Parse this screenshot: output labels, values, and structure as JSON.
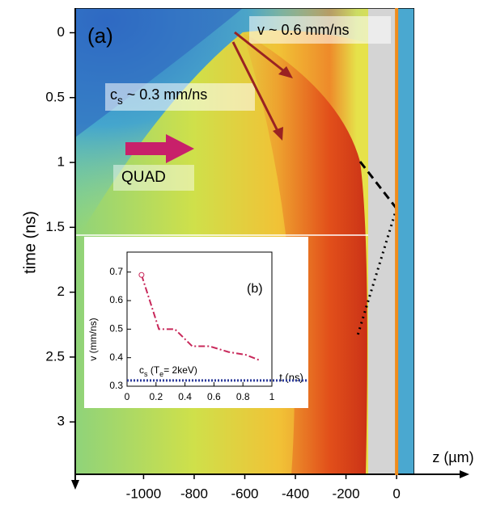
{
  "chart_data": [
    {
      "type": "heatmap",
      "xlabel": "z (µm)",
      "ylabel": "time (ns)",
      "xlim": [
        -1270,
        70
      ],
      "xticks": [
        -1000,
        -800,
        -600,
        -400,
        -200,
        0
      ],
      "ylim": [
        -0.19,
        3.41
      ],
      "yticks": [
        0,
        0.5,
        1,
        1.5,
        2,
        2.5,
        3
      ],
      "annotations": [
        "(a)",
        "v ~ 0.6 mm/ns",
        [
          "c",
          "s",
          " ~ 0.3 mm/ns"
        ],
        "QUAD"
      ]
    },
    {
      "type": "line",
      "xlabel": "t (ns)",
      "ylabel": "v (mm/ns)",
      "xlim": [
        0,
        1
      ],
      "xticks": [
        0,
        0.2,
        0.4,
        0.6,
        0.8,
        1
      ],
      "ylim": [
        0.3,
        0.77
      ],
      "yticks": [
        0.3,
        0.4,
        0.5,
        0.6,
        0.7
      ],
      "x": [
        0.1,
        0.22,
        0.33,
        0.45,
        0.57,
        0.7,
        0.82,
        0.92
      ],
      "series": [
        {
          "color": "#c8285a",
          "values": [
            0.69,
            0.5,
            0.5,
            0.44,
            0.44,
            0.42,
            0.41,
            0.39
          ]
        }
      ],
      "hline": {
        "value": 0.32,
        "color": "#2b3a9a",
        "label": [
          "c",
          "s",
          " (T",
          "e",
          "= 2keV)"
        ]
      },
      "annotations": [
        "(b)"
      ]
    }
  ]
}
